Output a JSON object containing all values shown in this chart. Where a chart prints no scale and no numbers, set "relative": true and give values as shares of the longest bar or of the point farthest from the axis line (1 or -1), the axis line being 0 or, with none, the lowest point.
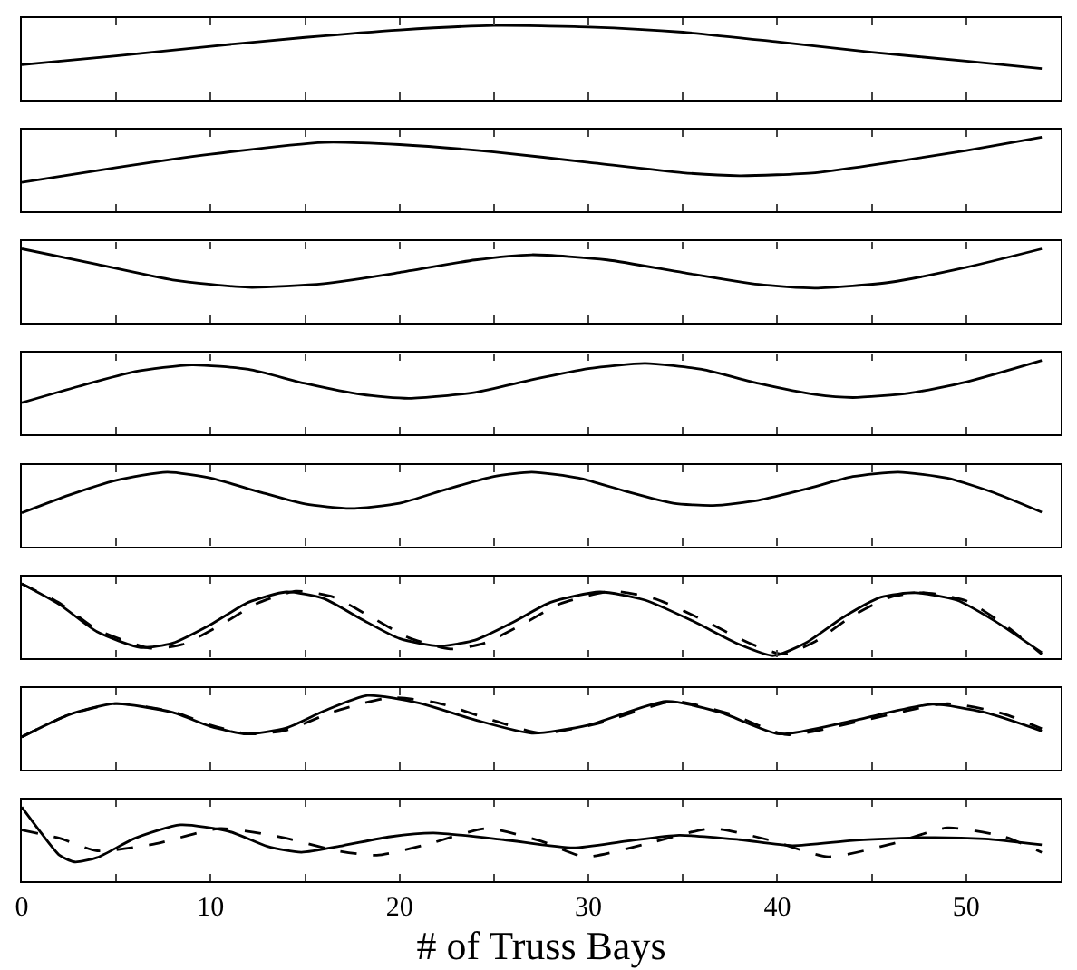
{
  "chart_data": [
    {
      "type": "line",
      "relative": true,
      "xlim": [
        0,
        55
      ],
      "tick_labels": false,
      "xticks": [
        0,
        {
          "value": 5,
          "label": null
        },
        10,
        {
          "value": 15,
          "label": null
        },
        20,
        {
          "value": 25,
          "label": null
        },
        30,
        {
          "value": 35,
          "label": null
        },
        40,
        {
          "value": 45,
          "label": null
        },
        50
      ],
      "series": [
        {
          "color": "#000000",
          "line_style": "solid",
          "x": [
            0,
            5,
            10,
            15,
            20,
            25,
            30,
            35,
            40,
            45,
            50,
            54
          ],
          "values": [
            0.47,
            0.59,
            0.72,
            0.84,
            0.94,
            1,
            0.98,
            0.91,
            0.78,
            0.64,
            0.52,
            0.42
          ]
        }
      ]
    },
    {
      "type": "line",
      "relative": true,
      "xlim": [
        0,
        55
      ],
      "tick_labels": false,
      "xticks": [
        0,
        {
          "value": 5,
          "label": null
        },
        10,
        {
          "value": 15,
          "label": null
        },
        20,
        {
          "value": 25,
          "label": null
        },
        30,
        {
          "value": 35,
          "label": null
        },
        40,
        {
          "value": 45,
          "label": null
        },
        50
      ],
      "series": [
        {
          "color": "#000000",
          "line_style": "solid",
          "x": [
            0,
            5,
            10,
            16,
            20,
            25,
            30,
            35,
            38,
            42,
            46,
            50,
            54
          ],
          "values": [
            0.39,
            0.59,
            0.77,
            0.93,
            0.9,
            0.8,
            0.66,
            0.52,
            0.48,
            0.52,
            0.66,
            0.82,
            1
          ]
        }
      ]
    },
    {
      "type": "line",
      "relative": true,
      "xlim": [
        0,
        55
      ],
      "tick_labels": false,
      "xticks": [
        0,
        {
          "value": 5,
          "label": null
        },
        10,
        {
          "value": 15,
          "label": null
        },
        20,
        {
          "value": 25,
          "label": null
        },
        30,
        {
          "value": 35,
          "label": null
        },
        40,
        {
          "value": 45,
          "label": null
        },
        50
      ],
      "series": [
        {
          "color": "#000000",
          "line_style": "solid",
          "x": [
            0,
            4,
            8,
            12,
            16,
            20,
            24,
            27,
            31,
            35,
            39,
            42,
            46,
            50,
            54
          ],
          "values": [
            1,
            0.79,
            0.58,
            0.48,
            0.53,
            0.68,
            0.85,
            0.92,
            0.85,
            0.68,
            0.52,
            0.47,
            0.55,
            0.75,
            1
          ]
        }
      ]
    },
    {
      "type": "line",
      "relative": true,
      "xlim": [
        0,
        55
      ],
      "tick_labels": false,
      "xticks": [
        0,
        {
          "value": 5,
          "label": null
        },
        10,
        {
          "value": 15,
          "label": null
        },
        20,
        {
          "value": 25,
          "label": null
        },
        30,
        {
          "value": 35,
          "label": null
        },
        40,
        {
          "value": 45,
          "label": null
        },
        50
      ],
      "series": [
        {
          "color": "#000000",
          "line_style": "solid",
          "x": [
            0,
            3,
            6,
            9,
            12,
            15,
            18,
            20.5,
            24,
            27,
            30,
            33,
            36,
            39,
            42,
            44,
            47,
            50,
            54
          ],
          "values": [
            0.43,
            0.65,
            0.85,
            0.94,
            0.88,
            0.69,
            0.54,
            0.49,
            0.57,
            0.74,
            0.89,
            0.96,
            0.88,
            0.69,
            0.54,
            0.5,
            0.56,
            0.71,
            1
          ]
        }
      ]
    },
    {
      "type": "line",
      "relative": true,
      "xlim": [
        0,
        55
      ],
      "tick_labels": false,
      "xticks": [
        0,
        {
          "value": 5,
          "label": null
        },
        10,
        {
          "value": 15,
          "label": null
        },
        20,
        {
          "value": 25,
          "label": null
        },
        30,
        {
          "value": 35,
          "label": null
        },
        40,
        {
          "value": 45,
          "label": null
        },
        50
      ],
      "series": [
        {
          "color": "#000000",
          "line_style": "solid",
          "x": [
            0,
            2.5,
            5,
            7.7,
            10,
            12.5,
            15,
            17.4,
            20,
            22.5,
            25,
            27,
            29.5,
            32,
            34.5,
            36.6,
            39,
            41.5,
            44,
            46.4,
            49,
            51.5,
            54
          ],
          "values": [
            0.45,
            0.69,
            0.89,
            1,
            0.92,
            0.74,
            0.57,
            0.51,
            0.58,
            0.77,
            0.94,
            1,
            0.92,
            0.74,
            0.58,
            0.55,
            0.62,
            0.77,
            0.94,
            1,
            0.92,
            0.72,
            0.46
          ]
        }
      ]
    },
    {
      "type": "line",
      "relative": true,
      "xlim": [
        0,
        55
      ],
      "tick_labels": false,
      "xticks": [
        0,
        {
          "value": 5,
          "label": null
        },
        10,
        {
          "value": 15,
          "label": null
        },
        20,
        {
          "value": 25,
          "label": null
        },
        30,
        {
          "value": 35,
          "label": null
        },
        40,
        {
          "value": 45,
          "label": null
        },
        50
      ],
      "series": [
        {
          "color": "#000000",
          "line_style": "solid",
          "x": [
            0,
            2,
            4,
            6.3,
            8,
            10,
            12,
            14,
            16,
            18,
            20,
            22.1,
            24,
            26,
            28,
            30.6,
            33,
            35.5,
            38,
            39.8,
            41.5,
            43.5,
            45.5,
            47.3,
            49.5,
            51.5,
            54
          ],
          "values": [
            1,
            0.72,
            0.35,
            0.14,
            0.2,
            0.45,
            0.75,
            0.89,
            0.8,
            0.52,
            0.26,
            0.16,
            0.24,
            0.48,
            0.75,
            0.89,
            0.78,
            0.5,
            0.18,
            0.03,
            0.2,
            0.55,
            0.82,
            0.88,
            0.78,
            0.5,
            0.07
          ]
        },
        {
          "color": "#000000",
          "line_style": "dashed",
          "x": [
            0,
            2,
            4,
            6.8,
            8.5,
            10.5,
            12.5,
            14.5,
            16.5,
            18.5,
            20.5,
            22.7,
            24.5,
            26.5,
            28.5,
            31.2,
            33.5,
            36,
            38.5,
            40.3,
            42,
            44,
            46,
            47.8,
            50,
            52,
            54
          ],
          "values": [
            1,
            0.74,
            0.38,
            0.13,
            0.18,
            0.44,
            0.74,
            0.9,
            0.82,
            0.55,
            0.27,
            0.12,
            0.2,
            0.45,
            0.73,
            0.9,
            0.8,
            0.52,
            0.2,
            0.05,
            0.22,
            0.57,
            0.82,
            0.88,
            0.77,
            0.45,
            0.05
          ]
        }
      ]
    },
    {
      "type": "line",
      "relative": true,
      "xlim": [
        0,
        55
      ],
      "tick_labels": false,
      "xticks": [
        0,
        {
          "value": 5,
          "label": null
        },
        10,
        {
          "value": 15,
          "label": null
        },
        20,
        {
          "value": 25,
          "label": null
        },
        30,
        {
          "value": 35,
          "label": null
        },
        40,
        {
          "value": 45,
          "label": null
        },
        50
      ],
      "series": [
        {
          "color": "#000000",
          "line_style": "solid",
          "x": [
            0,
            2.5,
            4.9,
            8,
            10,
            11.9,
            14,
            16,
            18.3,
            21,
            24,
            27,
            30,
            34.1,
            37,
            40.1,
            44,
            48.2,
            51,
            54
          ],
          "values": [
            0.44,
            0.74,
            0.89,
            0.77,
            0.58,
            0.48,
            0.56,
            0.79,
            1,
            0.9,
            0.67,
            0.49,
            0.6,
            0.92,
            0.77,
            0.48,
            0.66,
            0.88,
            0.77,
            0.52
          ]
        },
        {
          "color": "#000000",
          "line_style": "dashed",
          "x": [
            0,
            2.5,
            5,
            8,
            10,
            12,
            14,
            16.5,
            19.5,
            22,
            25,
            27.5,
            30.5,
            34.5,
            37.5,
            40.5,
            44.5,
            49,
            52,
            54
          ],
          "values": [
            0.44,
            0.74,
            0.89,
            0.78,
            0.6,
            0.48,
            0.53,
            0.78,
            0.97,
            0.9,
            0.66,
            0.49,
            0.62,
            0.92,
            0.75,
            0.47,
            0.66,
            0.89,
            0.75,
            0.55
          ]
        }
      ]
    },
    {
      "type": "line",
      "relative": true,
      "xlim": [
        0,
        55
      ],
      "tick_labels": "x",
      "xlabel": "# of Truss Bays",
      "xticks": [
        0,
        {
          "value": 5,
          "label": null
        },
        10,
        {
          "value": 15,
          "label": null
        },
        20,
        {
          "value": 25,
          "label": null
        },
        30,
        {
          "value": 35,
          "label": null
        },
        40,
        {
          "value": 45,
          "label": null
        },
        50
      ],
      "series": [
        {
          "color": "#000000",
          "line_style": "solid",
          "x": [
            0,
            1,
            2,
            2.8,
            4,
            6,
            8.4,
            11,
            13,
            14.8,
            17,
            19.5,
            21.8,
            25.5,
            29.2,
            32,
            34.8,
            38,
            40.8,
            44,
            48,
            51,
            54
          ],
          "values": [
            1,
            0.66,
            0.35,
            0.26,
            0.32,
            0.58,
            0.76,
            0.67,
            0.47,
            0.39,
            0.48,
            0.6,
            0.65,
            0.56,
            0.45,
            0.54,
            0.62,
            0.56,
            0.48,
            0.55,
            0.59,
            0.57,
            0.49
          ]
        },
        {
          "color": "#000000",
          "line_style": "dashed",
          "x": [
            0,
            2,
            4,
            7,
            10.5,
            14,
            16.5,
            18.8,
            21.5,
            24.6,
            27.5,
            29.8,
            33,
            36.5,
            39.5,
            42.7,
            46,
            49,
            52,
            54
          ],
          "values": [
            0.69,
            0.58,
            0.41,
            0.5,
            0.71,
            0.58,
            0.42,
            0.35,
            0.5,
            0.71,
            0.54,
            0.33,
            0.5,
            0.71,
            0.56,
            0.33,
            0.5,
            0.72,
            0.6,
            0.39
          ]
        }
      ]
    }
  ]
}
